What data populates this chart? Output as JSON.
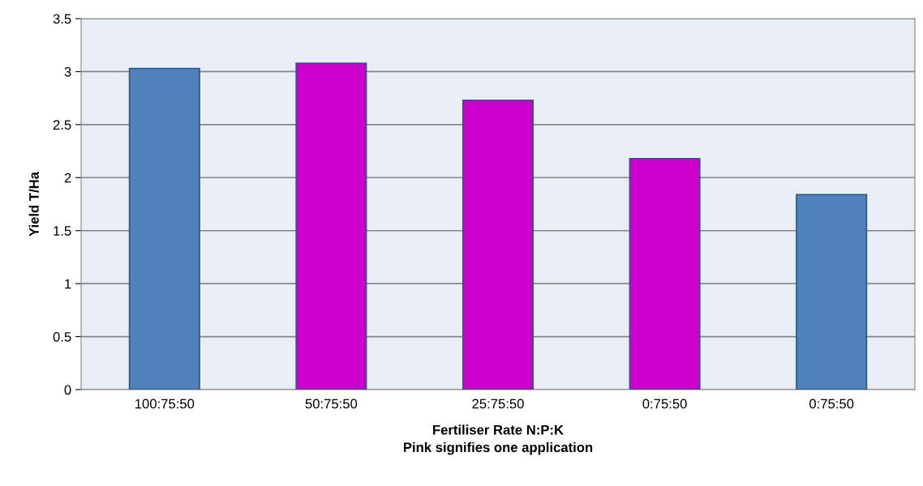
{
  "chart_data": {
    "type": "bar",
    "xlabel": "Fertiliser Rate N:P:K\nPink signifies one application",
    "ylabel": "Yield T/Ha",
    "categories": [
      "100:75:50",
      "50:75:50",
      "25:75:50",
      "0:75:50",
      "0:75:50"
    ],
    "values": [
      3.03,
      3.08,
      2.73,
      2.18,
      1.84
    ],
    "colors": [
      "#4f81bd",
      "#cc00cc",
      "#cc00cc",
      "#cc00cc",
      "#4f81bd"
    ],
    "ylim": [
      0,
      3.5
    ],
    "yticks": [
      0,
      0.5,
      1,
      1.5,
      2,
      2.5,
      3,
      3.5
    ],
    "grid": "y",
    "legend": false
  }
}
